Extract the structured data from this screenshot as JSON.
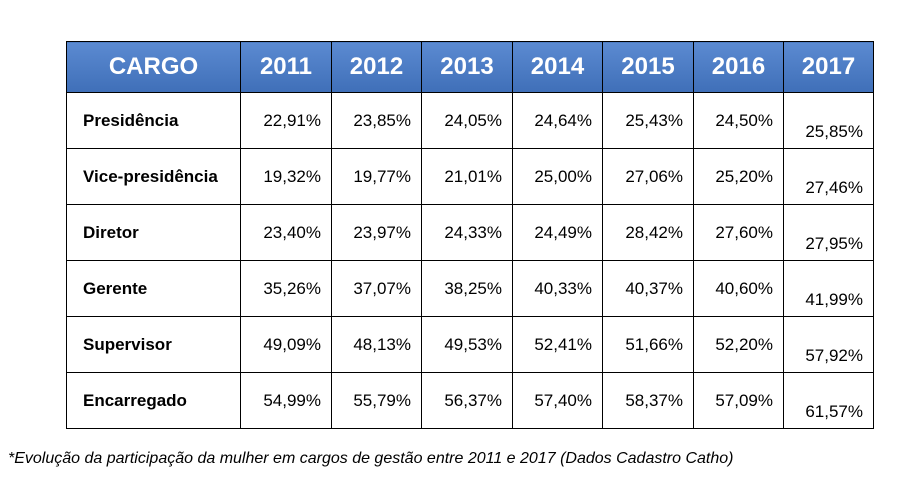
{
  "chart_data": {
    "type": "table",
    "columns": [
      "CARGO",
      "2011",
      "2012",
      "2013",
      "2014",
      "2015",
      "2016",
      "2017"
    ],
    "rows": [
      {
        "cargo": "Presidência",
        "values": [
          "22,91%",
          "23,85%",
          "24,05%",
          "24,64%",
          "25,43%",
          "24,50%",
          "25,85%"
        ]
      },
      {
        "cargo": "Vice-presidência",
        "values": [
          "19,32%",
          "19,77%",
          "21,01%",
          "25,00%",
          "27,06%",
          "25,20%",
          "27,46%"
        ]
      },
      {
        "cargo": "Diretor",
        "values": [
          "23,40%",
          "23,97%",
          "24,33%",
          "24,49%",
          "28,42%",
          "27,60%",
          "27,95%"
        ]
      },
      {
        "cargo": "Gerente",
        "values": [
          "35,26%",
          "37,07%",
          "38,25%",
          "40,33%",
          "40,37%",
          "40,60%",
          "41,99%"
        ]
      },
      {
        "cargo": "Supervisor",
        "values": [
          "49,09%",
          "48,13%",
          "49,53%",
          "52,41%",
          "51,66%",
          "52,20%",
          "57,92%"
        ]
      },
      {
        "cargo": "Encarregado",
        "values": [
          "54,99%",
          "55,79%",
          "56,37%",
          "57,40%",
          "58,37%",
          "57,09%",
          "61,57%"
        ]
      }
    ],
    "caption": "*Evolução da participação da mulher em cargos de gestão entre 2011 e 2017 (Dados Cadastro Catho)"
  },
  "colors": {
    "header_bg": "#4a7cc7",
    "header_text": "#ffffff",
    "border": "#000000"
  }
}
